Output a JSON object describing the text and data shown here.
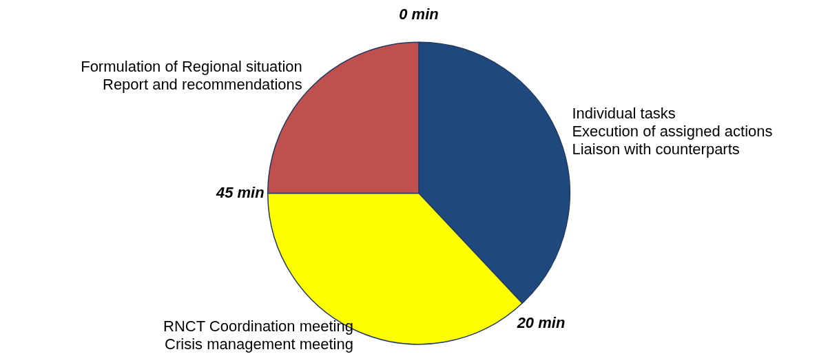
{
  "chart_data": {
    "type": "pie",
    "categories": [
      "Individual tasks\nExecution of assigned actions\nLiaison with counterparts",
      "RNCT Coordination meeting\nCrisis management meeting",
      "Formulation of Regional situation\n Report and recommendations"
    ],
    "values": [
      38,
      37,
      25
    ],
    "colors": [
      "#1f497d",
      "#ffff00",
      "#c0504d"
    ],
    "annotations": [
      "0 min",
      "20 min",
      "45 min"
    ],
    "legend": false
  }
}
